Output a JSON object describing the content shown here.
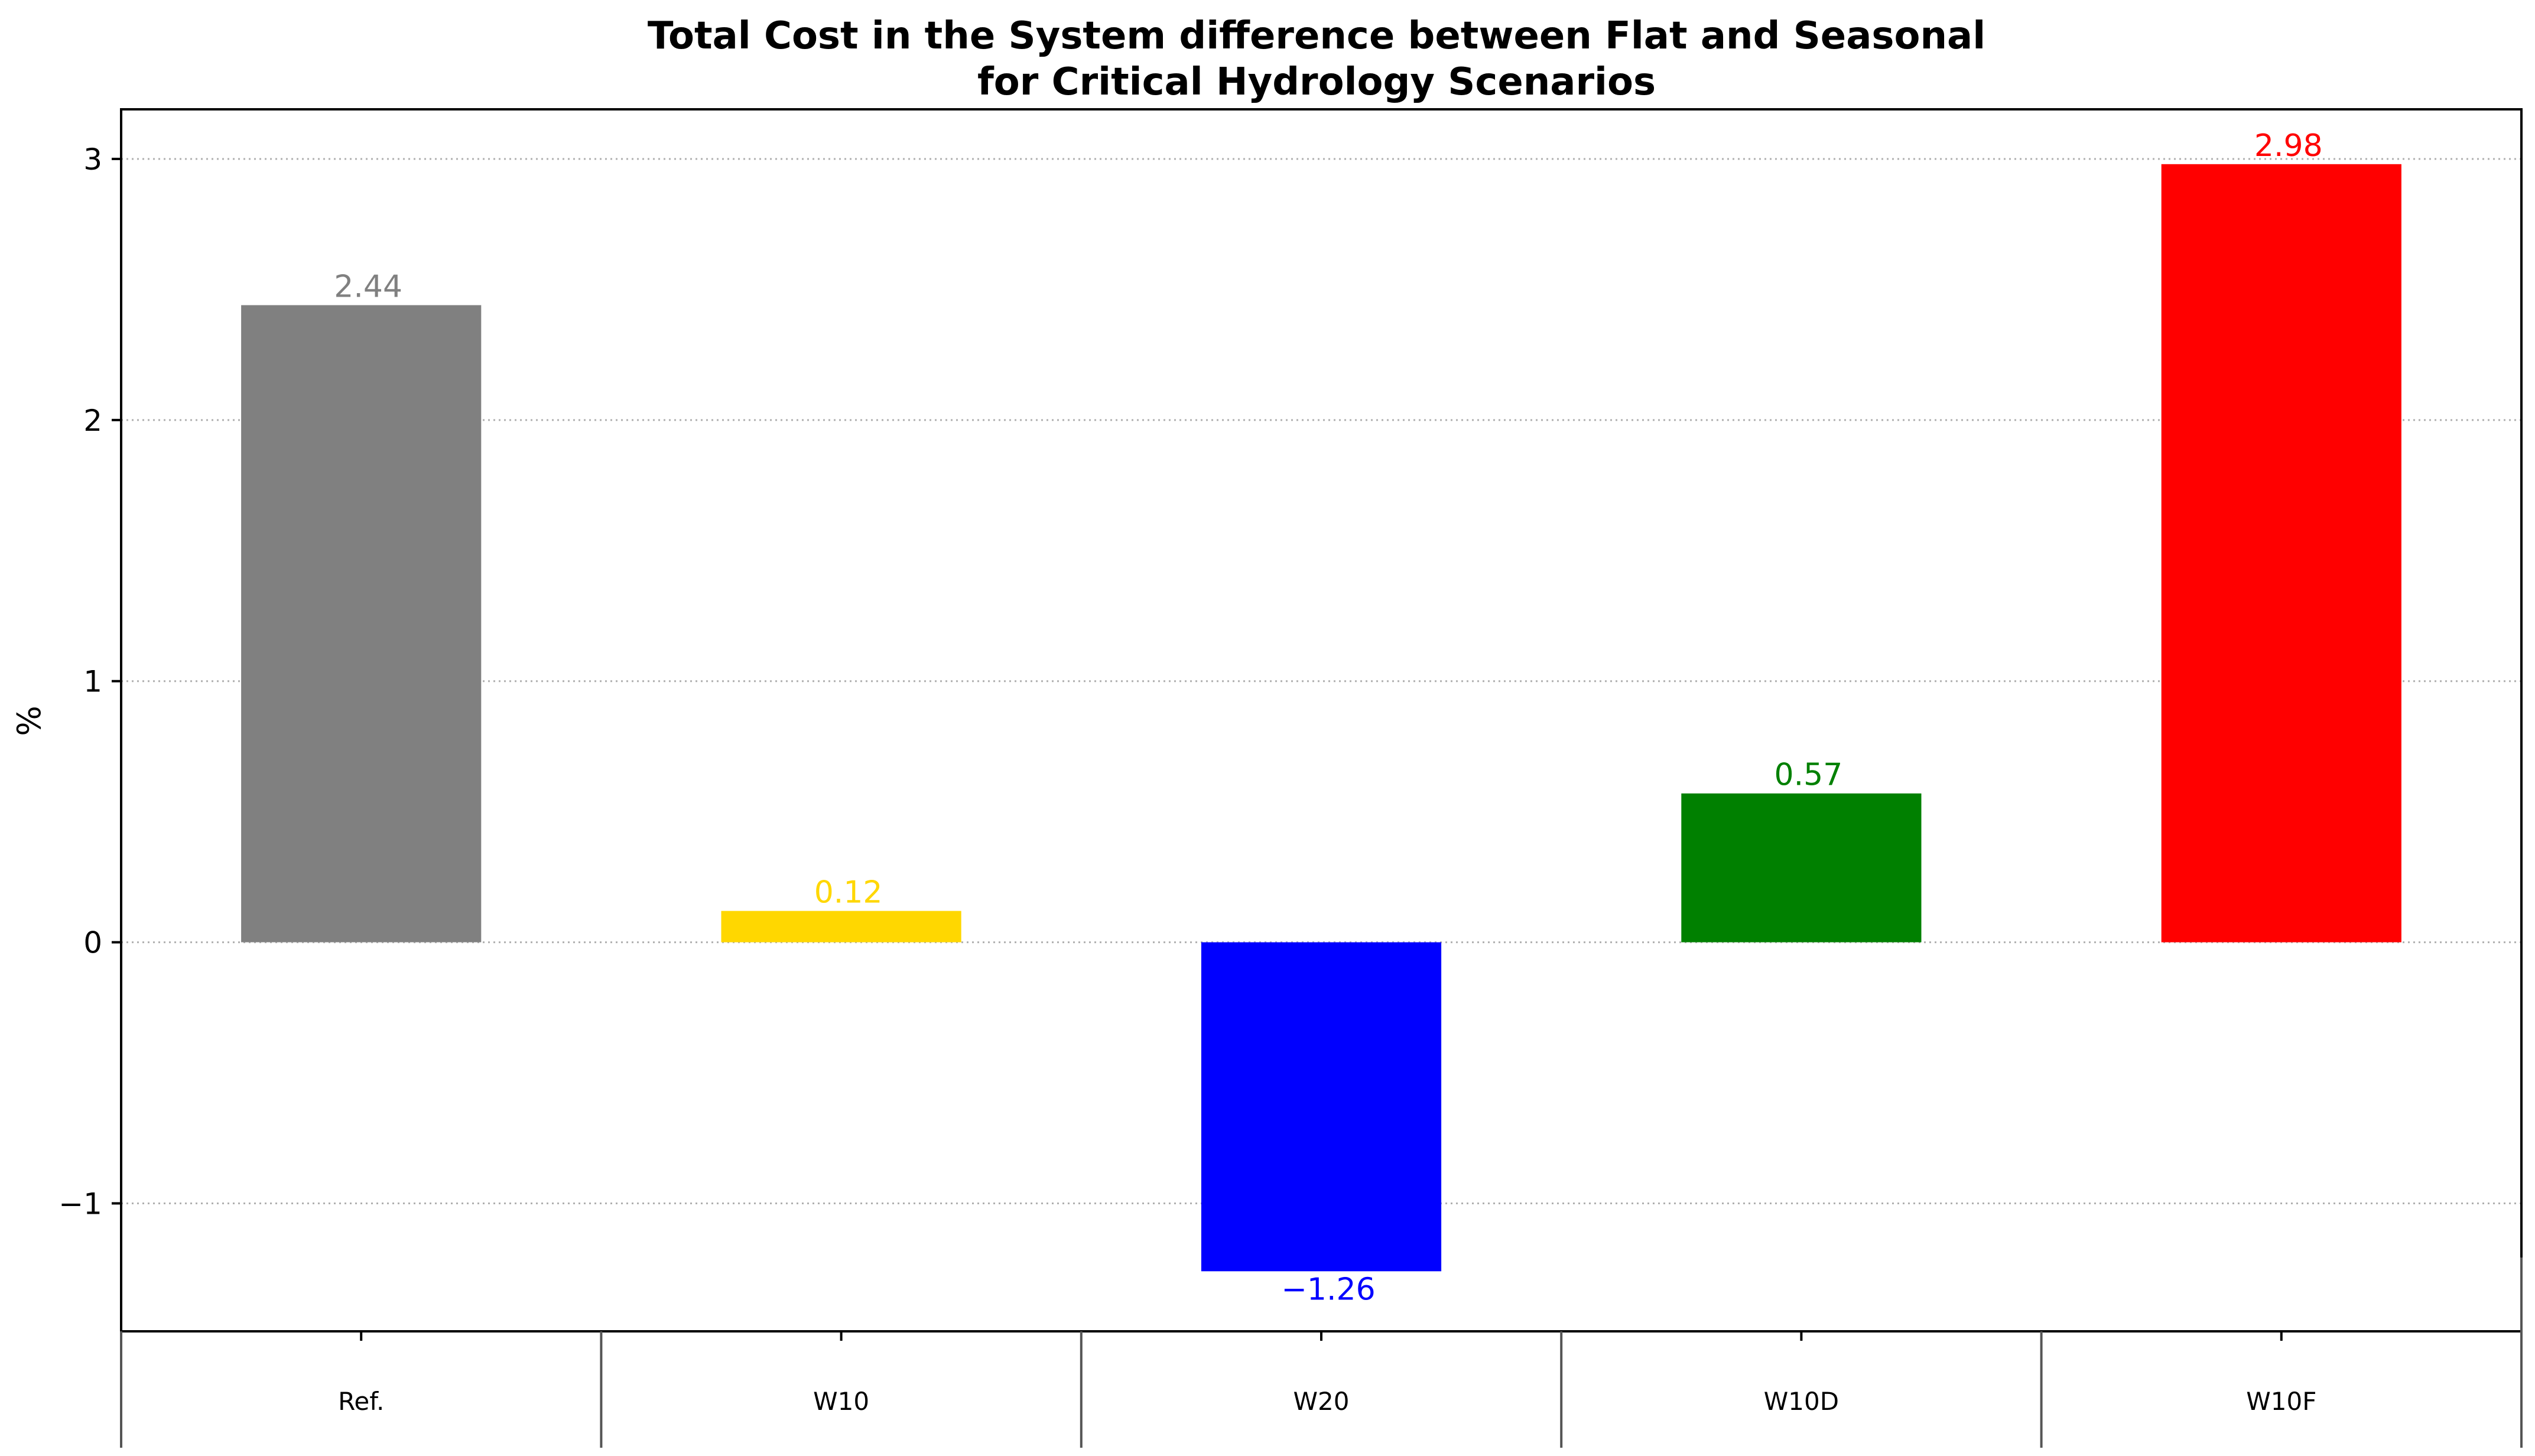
{
  "chart_data": {
    "type": "bar",
    "title": "Total Cost in the System difference between Flat and Seasonal",
    "subtitle": "for Critical Hydrology Scenarios",
    "xlabel": "",
    "ylabel": "%",
    "categories": [
      "Ref.",
      "W10",
      "W20",
      "W10D",
      "W10F"
    ],
    "values": [
      2.44,
      0.12,
      -1.26,
      0.57,
      2.98
    ],
    "value_labels": [
      "2.44",
      "0.12",
      "−1.26",
      "0.57",
      "2.98"
    ],
    "colors": [
      "#808080",
      "#FFD700",
      "#0000FF",
      "#008000",
      "#FF0000"
    ],
    "yticks": [
      -1,
      0,
      1,
      2,
      3
    ],
    "ytick_labels": [
      "−1",
      "0",
      "1",
      "2",
      "3"
    ],
    "ylim": [
      -1.49,
      3.19
    ],
    "grid": "horizontal-dotted",
    "legend": "none"
  }
}
